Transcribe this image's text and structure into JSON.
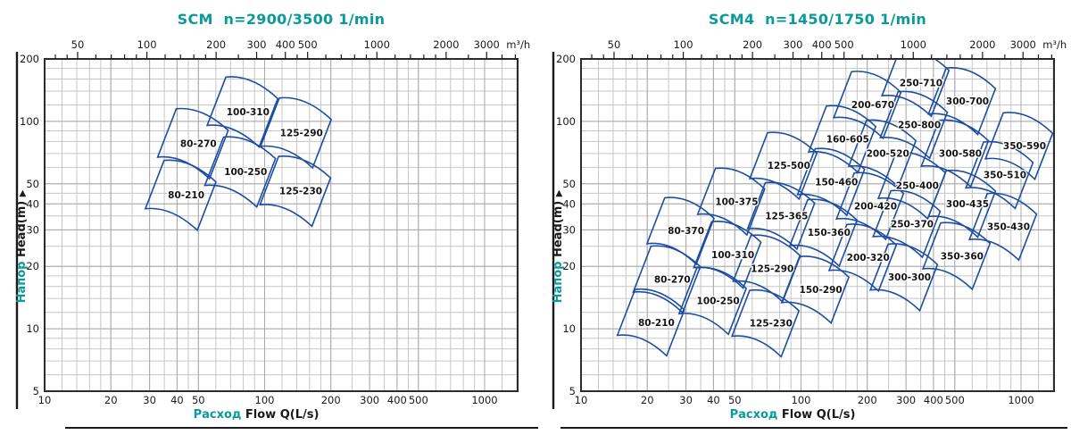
{
  "colors": {
    "accent_teal": "#0b9a9a",
    "curve_blue": "#1c4da0",
    "grid_minor": "#c6c6c6",
    "grid_major": "#a9a9a9",
    "border_black": "#2b2b2b",
    "axis_text": "#1a1a1a",
    "region_label": "#141414"
  },
  "chart_data": [
    {
      "type": "area",
      "title": "SCM  n=2900/3500 1/min",
      "xscale": "log",
      "yscale": "log",
      "xlim": [
        10,
        1414
      ],
      "ylim": [
        5,
        200
      ],
      "grid": true,
      "xlabel_ru": "Расход",
      "xlabel_en": "Flow Q(L/s)",
      "ylabel_ru": "Напор",
      "ylabel_en": "Head(m)",
      "x2_unit": "m³/h",
      "x_tick_labels": [
        10,
        20,
        30,
        40,
        50,
        100,
        200,
        300,
        400,
        500,
        1000
      ],
      "x2_tick_labels": [
        50,
        100,
        200,
        300,
        400,
        500,
        1000,
        2000,
        3000
      ],
      "y_tick_labels": [
        200,
        100,
        50,
        40,
        30,
        20,
        10,
        5
      ],
      "regions": [
        {
          "model": "80-210",
          "q": 44,
          "h": 44
        },
        {
          "model": "80-270",
          "q": 50,
          "h": 78
        },
        {
          "model": "100-250",
          "q": 82,
          "h": 57
        },
        {
          "model": "100-310",
          "q": 84,
          "h": 111
        },
        {
          "model": "125-230",
          "q": 146,
          "h": 46
        },
        {
          "model": "125-290",
          "q": 147,
          "h": 88
        }
      ]
    },
    {
      "type": "area",
      "title": "SCM4  n=1450/1750 1/min",
      "xscale": "log",
      "yscale": "log",
      "xlim": [
        10,
        1414
      ],
      "ylim": [
        5,
        200
      ],
      "grid": true,
      "xlabel_ru": "Расход",
      "xlabel_en": "Flow Q(L/s)",
      "ylabel_ru": "Напор",
      "ylabel_en": "Head(m)",
      "x2_unit": "m³/h",
      "x_tick_labels": [
        10,
        20,
        30,
        40,
        50,
        100,
        200,
        300,
        400,
        500,
        1000
      ],
      "x2_tick_labels": [
        50,
        100,
        200,
        300,
        400,
        500,
        1000,
        2000,
        3000
      ],
      "y_tick_labels": [
        200,
        100,
        50,
        40,
        30,
        20,
        10,
        5
      ],
      "regions": [
        {
          "model": "80-210",
          "q": 22,
          "h": 10.7
        },
        {
          "model": "125-230",
          "q": 73,
          "h": 10.6
        },
        {
          "model": "100-250",
          "q": 42,
          "h": 13.6
        },
        {
          "model": "150-290",
          "q": 123,
          "h": 15.4
        },
        {
          "model": "80-270",
          "q": 26,
          "h": 17.3
        },
        {
          "model": "300-300",
          "q": 311,
          "h": 17.7
        },
        {
          "model": "100-310",
          "q": 49,
          "h": 22.7
        },
        {
          "model": "125-290",
          "q": 74,
          "h": 19.5
        },
        {
          "model": "200-320",
          "q": 202,
          "h": 22
        },
        {
          "model": "350-360",
          "q": 539,
          "h": 22.4
        },
        {
          "model": "80-370",
          "q": 30,
          "h": 29.6
        },
        {
          "model": "150-360",
          "q": 134,
          "h": 29
        },
        {
          "model": "250-370",
          "q": 320,
          "h": 32
        },
        {
          "model": "350-430",
          "q": 877,
          "h": 31
        },
        {
          "model": "100-375",
          "q": 51,
          "h": 41
        },
        {
          "model": "125-365",
          "q": 86,
          "h": 35
        },
        {
          "model": "200-420",
          "q": 218,
          "h": 39
        },
        {
          "model": "300-435",
          "q": 571,
          "h": 40
        },
        {
          "model": "125-500",
          "q": 88,
          "h": 61
        },
        {
          "model": "150-460",
          "q": 145,
          "h": 51
        },
        {
          "model": "250-400",
          "q": 338,
          "h": 49
        },
        {
          "model": "350-510",
          "q": 845,
          "h": 55
        },
        {
          "model": "160-605",
          "q": 163,
          "h": 82
        },
        {
          "model": "200-520",
          "q": 248,
          "h": 70
        },
        {
          "model": "300-580",
          "q": 530,
          "h": 70
        },
        {
          "model": "350-590",
          "q": 1038,
          "h": 76
        },
        {
          "model": "200-670",
          "q": 212,
          "h": 120
        },
        {
          "model": "250-800",
          "q": 345,
          "h": 96
        },
        {
          "model": "250-710",
          "q": 351,
          "h": 153
        },
        {
          "model": "300-700",
          "q": 571,
          "h": 125
        }
      ]
    }
  ]
}
